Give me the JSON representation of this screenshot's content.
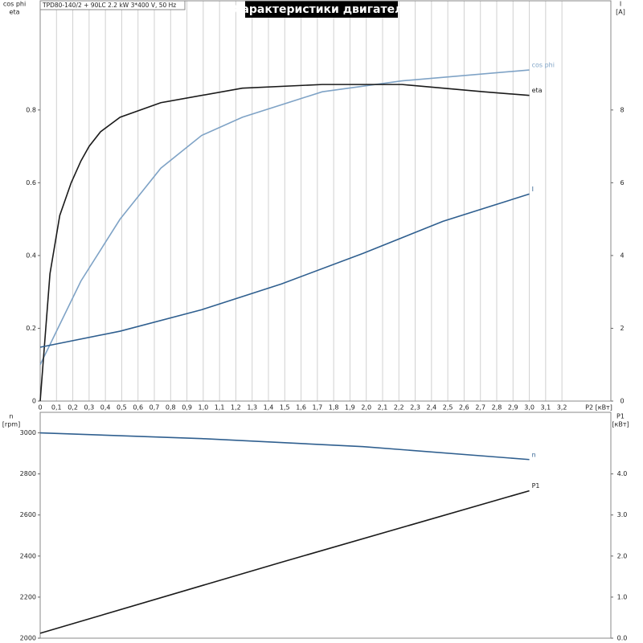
{
  "chart_data": [
    {
      "type": "line",
      "title": "Характеристики двигателя",
      "subtitle": "TPD80-140/2 + 90LC  2.2 kW  3*400 V, 50 Hz",
      "ylabel": [
        "cos phi",
        "eta"
      ],
      "y2label": [
        "I",
        "[A]"
      ],
      "xlabel": "P2 [кВт]",
      "xlim": [
        0,
        3.5
      ],
      "ylim": [
        0,
        1.1
      ],
      "y2lim": [
        0,
        11
      ],
      "grid": true,
      "xticks": [
        0,
        {
          "value": 0.1,
          "label": "0,1"
        },
        {
          "value": 0.2,
          "label": "0,2"
        },
        {
          "value": 0.3,
          "label": "0,3"
        },
        {
          "value": 0.4,
          "label": "0,4"
        },
        {
          "value": 0.5,
          "label": "0,5"
        },
        {
          "value": 0.6,
          "label": "0,6"
        },
        {
          "value": 0.7,
          "label": "0,7"
        },
        {
          "value": 0.8,
          "label": "0,8"
        },
        {
          "value": 0.9,
          "label": "0,9"
        },
        {
          "value": 1.0,
          "label": "1,0"
        },
        {
          "value": 1.1,
          "label": "1,1"
        },
        {
          "value": 1.2,
          "label": "1,2"
        },
        {
          "value": 1.3,
          "label": "1,3"
        },
        {
          "value": 1.4,
          "label": "1,4"
        },
        {
          "value": 1.5,
          "label": "1,5"
        },
        {
          "value": 1.6,
          "label": "1,6"
        },
        {
          "value": 1.7,
          "label": "1,7"
        },
        {
          "value": 1.8,
          "label": "1,8"
        },
        {
          "value": 1.9,
          "label": "1,9"
        },
        {
          "value": 2.0,
          "label": "2,0"
        },
        {
          "value": 2.1,
          "label": "2,1"
        },
        {
          "value": 2.2,
          "label": "2,2"
        },
        {
          "value": 2.3,
          "label": "2,3"
        },
        {
          "value": 2.4,
          "label": "2,4"
        },
        {
          "value": 2.5,
          "label": "2,5"
        },
        {
          "value": 2.6,
          "label": "2,6"
        },
        {
          "value": 2.7,
          "label": "2,7"
        },
        {
          "value": 2.8,
          "label": "2,8"
        },
        {
          "value": 2.9,
          "label": "2,9"
        },
        {
          "value": 3.0,
          "label": "3,0"
        },
        {
          "value": 3.1,
          "label": "3,1"
        },
        {
          "value": 3.2,
          "label": "3,2"
        }
      ],
      "yticks": [
        0,
        0.2,
        0.4,
        0.6,
        0.8
      ],
      "y2ticks": [
        0,
        2,
        4,
        6,
        8
      ],
      "series": [
        {
          "name": "cos phi",
          "color": "#7fa3c6",
          "x": [
            0,
            0.25,
            0.49,
            0.74,
            0.99,
            1.24,
            1.73,
            2.22,
            3.0
          ],
          "values": [
            0.1,
            0.33,
            0.5,
            0.64,
            0.73,
            0.78,
            0.85,
            0.88,
            0.91
          ]
        },
        {
          "name": "eta",
          "color": "#1a1a1a",
          "x": [
            0,
            0.06,
            0.12,
            0.19,
            0.25,
            0.3,
            0.37,
            0.49,
            0.74,
            1.24,
            1.73,
            2.22,
            2.72,
            3.0
          ],
          "values": [
            0,
            0.35,
            0.51,
            0.6,
            0.66,
            0.7,
            0.74,
            0.78,
            0.82,
            0.86,
            0.87,
            0.87,
            0.85,
            0.84
          ]
        },
        {
          "name": "I",
          "color": "#2f5f8f",
          "axis": "y2",
          "x": [
            0,
            0.49,
            0.99,
            1.48,
            1.98,
            2.47,
            3.0
          ],
          "values": [
            1.48,
            1.92,
            2.51,
            3.22,
            4.06,
            4.94,
            5.69
          ]
        }
      ]
    },
    {
      "type": "line",
      "ylabel": [
        "n",
        "[rpm]"
      ],
      "y2label": [
        "P1",
        "[кВт]"
      ],
      "xlim": [
        0,
        3.5
      ],
      "ylim": [
        2000,
        3100
      ],
      "y2lim": [
        0,
        5.5
      ],
      "yticks": [
        2000,
        2200,
        2400,
        2600,
        2800,
        3000
      ],
      "y2ticks": [
        {
          "value": 0,
          "label": "0.0"
        },
        {
          "value": 1,
          "label": "1.0"
        },
        {
          "value": 2,
          "label": "2.0"
        },
        {
          "value": 3,
          "label": "3.0"
        },
        {
          "value": 4,
          "label": "4.0"
        }
      ],
      "series": [
        {
          "name": "n",
          "color": "#2f5f8f",
          "x": [
            0,
            0.99,
            1.98,
            3.0
          ],
          "values": [
            3000,
            2972,
            2933,
            2870
          ]
        },
        {
          "name": "P1",
          "color": "#1a1a1a",
          "axis": "y2",
          "x": [
            0,
            1.48,
            3.0
          ],
          "values": [
            0.12,
            1.85,
            3.59
          ]
        }
      ]
    }
  ]
}
